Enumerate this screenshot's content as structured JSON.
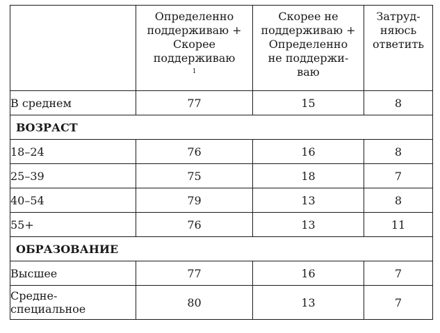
{
  "table": {
    "headers": [
      {
        "text": ""
      },
      {
        "text": "Определенно\nподдерживаю +\nСкорее\nподдерживаю",
        "footnote": "1"
      },
      {
        "text": "Скорее не\nподдерживаю +\nОпределенно\nне поддержи-\nваю",
        "footnote": ""
      },
      {
        "text": "Затруд-\nняюсь\nответить",
        "footnote": ""
      }
    ],
    "rows": [
      {
        "kind": "data",
        "label": "В среднем",
        "values": [
          "77",
          "15",
          "8"
        ]
      },
      {
        "kind": "section",
        "label": "ВОЗРАСТ"
      },
      {
        "kind": "data",
        "label": "18–24",
        "values": [
          "76",
          "16",
          "8"
        ]
      },
      {
        "kind": "data",
        "label": "25–39",
        "values": [
          "75",
          "18",
          "7"
        ]
      },
      {
        "kind": "data",
        "label": "40–54",
        "values": [
          "79",
          "13",
          "8"
        ]
      },
      {
        "kind": "data",
        "label": "55+",
        "values": [
          "76",
          "13",
          "11"
        ]
      },
      {
        "kind": "section",
        "label": "ОБРАЗОВАНИЕ"
      },
      {
        "kind": "data",
        "label": "Высшее",
        "values": [
          "77",
          "16",
          "7"
        ]
      },
      {
        "kind": "data",
        "label": "Средне-\nспециальное",
        "values": [
          "80",
          "13",
          "7"
        ],
        "tall": true
      }
    ]
  }
}
